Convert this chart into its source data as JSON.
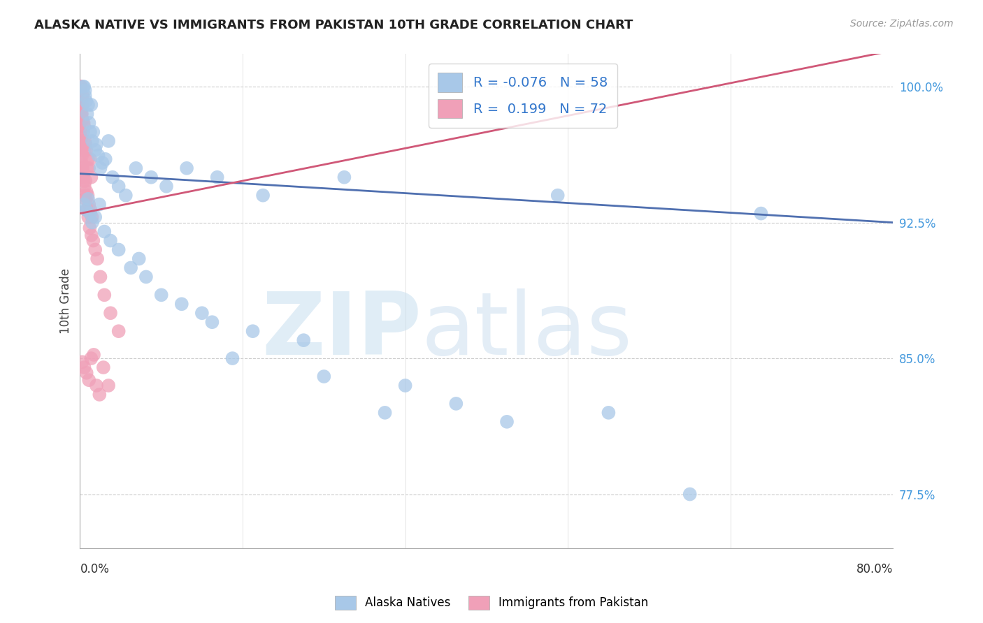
{
  "title": "ALASKA NATIVE VS IMMIGRANTS FROM PAKISTAN 10TH GRADE CORRELATION CHART",
  "source": "Source: ZipAtlas.com",
  "ylabel": "10th Grade",
  "ytick_positions": [
    77.5,
    85.0,
    92.5,
    100.0
  ],
  "ytick_labels": [
    "77.5%",
    "85.0%",
    "92.5%",
    "100.0%"
  ],
  "xmin": 0.0,
  "xmax": 80.0,
  "ymin": 74.5,
  "ymax": 101.8,
  "watermark_zip": "ZIP",
  "watermark_atlas": "atlas",
  "legend_blue_r": "R = -0.076",
  "legend_blue_n": "N = 58",
  "legend_pink_r": "R =  0.199",
  "legend_pink_n": "N = 72",
  "blue_color": "#a8c8e8",
  "pink_color": "#f0a0b8",
  "blue_line_color": "#5070b0",
  "pink_line_color": "#d05878",
  "blue_trend_x0": 0.0,
  "blue_trend_y0": 95.2,
  "blue_trend_x1": 80.0,
  "blue_trend_y1": 92.5,
  "pink_trend_x0": 0.0,
  "pink_trend_y0": 93.0,
  "pink_trend_x1": 80.0,
  "pink_trend_y1": 102.0,
  "alaska_x": [
    0.3,
    0.4,
    0.5,
    0.5,
    0.6,
    0.7,
    0.8,
    0.9,
    1.0,
    1.1,
    1.2,
    1.3,
    1.5,
    1.6,
    1.8,
    2.0,
    2.2,
    2.5,
    2.8,
    3.2,
    3.8,
    4.5,
    5.5,
    7.0,
    8.5,
    10.5,
    13.5,
    18.0,
    26.0,
    47.0,
    0.4,
    0.6,
    0.8,
    1.0,
    1.2,
    1.5,
    1.9,
    2.4,
    3.0,
    3.8,
    5.0,
    6.5,
    8.0,
    10.0,
    13.0,
    17.0,
    22.0,
    32.0,
    52.0,
    37.0,
    5.8,
    12.0,
    15.0,
    24.0,
    30.0,
    42.0,
    60.0,
    67.0
  ],
  "alaska_y": [
    100.0,
    100.0,
    99.5,
    99.8,
    99.2,
    98.5,
    99.0,
    98.0,
    97.5,
    99.0,
    97.0,
    97.5,
    96.5,
    96.8,
    96.2,
    95.5,
    95.8,
    96.0,
    97.0,
    95.0,
    94.5,
    94.0,
    95.5,
    95.0,
    94.5,
    95.5,
    95.0,
    94.0,
    95.0,
    94.0,
    93.5,
    93.2,
    93.8,
    93.0,
    92.5,
    92.8,
    93.5,
    92.0,
    91.5,
    91.0,
    90.0,
    89.5,
    88.5,
    88.0,
    87.0,
    86.5,
    86.0,
    83.5,
    82.0,
    82.5,
    90.5,
    87.5,
    85.0,
    84.0,
    82.0,
    81.5,
    77.5,
    93.0
  ],
  "pakistan_x": [
    0.02,
    0.03,
    0.04,
    0.05,
    0.06,
    0.07,
    0.08,
    0.09,
    0.1,
    0.11,
    0.12,
    0.14,
    0.16,
    0.18,
    0.2,
    0.22,
    0.25,
    0.28,
    0.32,
    0.36,
    0.4,
    0.45,
    0.5,
    0.56,
    0.62,
    0.7,
    0.78,
    0.88,
    1.0,
    1.1,
    0.03,
    0.06,
    0.1,
    0.15,
    0.21,
    0.28,
    0.36,
    0.44,
    0.54,
    0.64,
    0.76,
    0.88,
    1.02,
    1.18,
    0.08,
    0.13,
    0.19,
    0.26,
    0.35,
    0.45,
    0.56,
    0.68,
    0.82,
    0.96,
    1.12,
    1.3,
    1.5,
    1.7,
    2.0,
    2.4,
    3.0,
    3.8,
    0.22,
    0.42,
    0.64,
    0.88,
    1.1,
    1.35,
    1.62,
    1.92,
    2.3,
    2.8
  ],
  "pakistan_y": [
    100.0,
    99.8,
    100.0,
    99.5,
    99.8,
    100.0,
    99.2,
    99.0,
    100.0,
    98.5,
    99.5,
    98.8,
    99.2,
    98.5,
    99.0,
    98.2,
    99.5,
    98.0,
    97.5,
    98.0,
    97.8,
    96.5,
    97.0,
    96.8,
    96.5,
    95.5,
    96.0,
    95.5,
    96.0,
    95.0,
    97.5,
    97.0,
    96.5,
    95.8,
    95.5,
    95.0,
    95.2,
    94.5,
    94.8,
    94.2,
    94.0,
    93.5,
    93.2,
    92.8,
    98.5,
    97.2,
    96.2,
    95.5,
    94.8,
    94.0,
    93.8,
    93.2,
    92.8,
    92.2,
    91.8,
    91.5,
    91.0,
    90.5,
    89.5,
    88.5,
    87.5,
    86.5,
    84.8,
    84.5,
    84.2,
    83.8,
    85.0,
    85.2,
    83.5,
    83.0,
    84.5,
    83.5
  ]
}
